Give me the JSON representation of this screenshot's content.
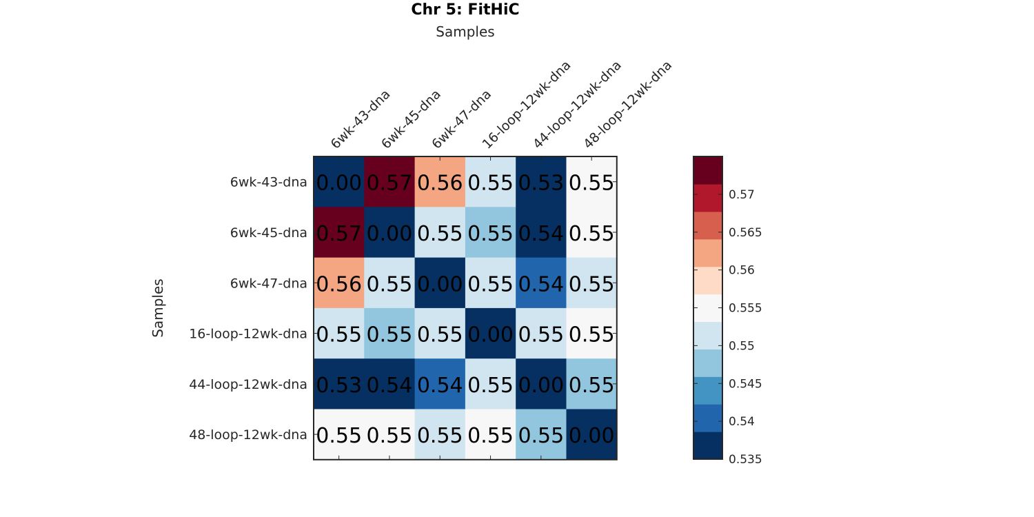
{
  "chart_data": {
    "type": "heatmap",
    "title": "Chr 5: FitHiC",
    "xlabel": "Samples",
    "ylabel": "Samples",
    "x_categories": [
      "6wk-43-dna",
      "6wk-45-dna",
      "6wk-47-dna",
      "16-loop-12wk-dna",
      "44-loop-12wk-dna",
      "48-loop-12wk-dna"
    ],
    "y_categories": [
      "6wk-43-dna",
      "6wk-45-dna",
      "6wk-47-dna",
      "16-loop-12wk-dna",
      "44-loop-12wk-dna",
      "48-loop-12wk-dna"
    ],
    "cell_labels": [
      [
        "0.00",
        "0.57",
        "0.56",
        "0.55",
        "0.53",
        "0.55"
      ],
      [
        "0.57",
        "0.00",
        "0.55",
        "0.55",
        "0.54",
        "0.55"
      ],
      [
        "0.56",
        "0.55",
        "0.00",
        "0.55",
        "0.54",
        "0.55"
      ],
      [
        "0.55",
        "0.55",
        "0.55",
        "0.00",
        "0.55",
        "0.55"
      ],
      [
        "0.53",
        "0.54",
        "0.54",
        "0.55",
        "0.00",
        "0.55"
      ],
      [
        "0.55",
        "0.55",
        "0.55",
        "0.55",
        "0.55",
        "0.00"
      ]
    ],
    "color_values": [
      [
        0.535,
        0.573,
        0.562,
        0.551,
        0.535,
        0.556
      ],
      [
        0.573,
        0.535,
        0.551,
        0.548,
        0.535,
        0.556
      ],
      [
        0.562,
        0.551,
        0.535,
        0.551,
        0.542,
        0.551
      ],
      [
        0.551,
        0.548,
        0.551,
        0.535,
        0.551,
        0.556
      ],
      [
        0.535,
        0.535,
        0.542,
        0.551,
        0.535,
        0.548
      ],
      [
        0.556,
        0.556,
        0.551,
        0.556,
        0.548,
        0.535
      ]
    ],
    "colorbar": {
      "range": [
        0.535,
        0.575
      ],
      "ticks": [
        0.535,
        0.54,
        0.545,
        0.55,
        0.555,
        0.56,
        0.565,
        0.57
      ],
      "tick_labels": [
        "0.535",
        "0.54",
        "0.545",
        "0.55",
        "0.555",
        "0.56",
        "0.565",
        "0.57"
      ],
      "colors": [
        "#053061",
        "#2166ac",
        "#4393c3",
        "#92c5de",
        "#d1e5f0",
        "#f7f7f7",
        "#fddbc7",
        "#f4a582",
        "#d6604d",
        "#b2182b",
        "#67001f"
      ]
    }
  }
}
